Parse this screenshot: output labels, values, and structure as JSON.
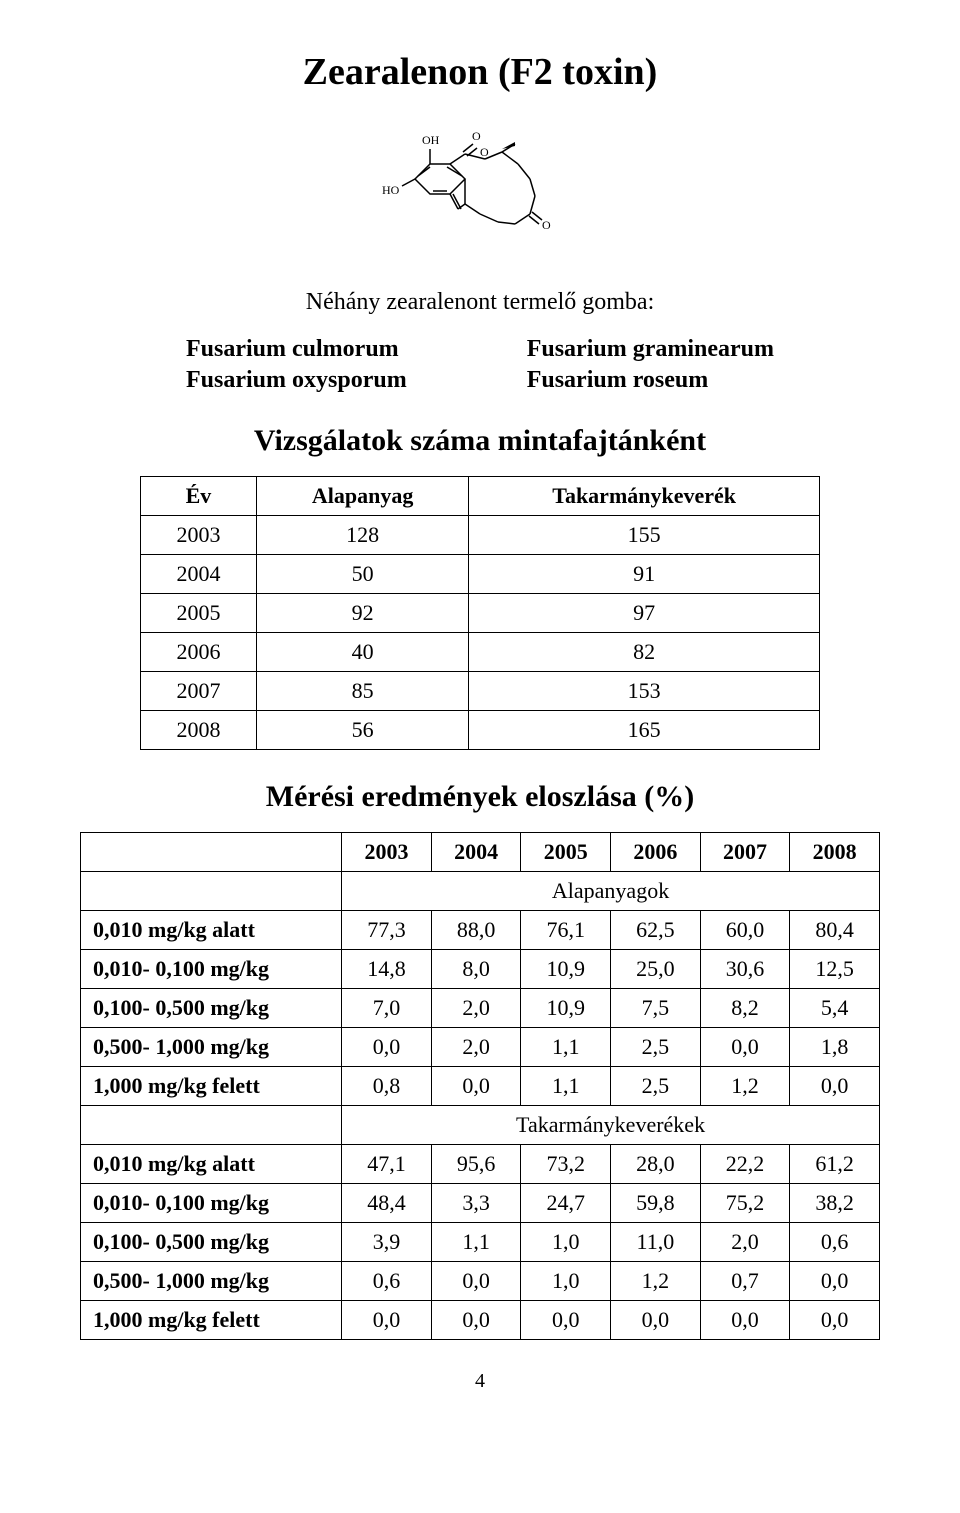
{
  "title": "Zearalenon (F2 toxin)",
  "subtitle": "Néhány zearalenont termelő gomba:",
  "fungi": {
    "left": [
      "Fusarium culmorum",
      "Fusarium oxysporum"
    ],
    "right": [
      "Fusarium graminearum",
      "Fusarium roseum"
    ]
  },
  "section1": {
    "heading": "Vizsgálatok száma mintafajtánként",
    "columns": [
      "Év",
      "Alapanyag",
      "Takarmánykeverék"
    ],
    "rows": [
      [
        "2003",
        "128",
        "155"
      ],
      [
        "2004",
        "50",
        "91"
      ],
      [
        "2005",
        "92",
        "97"
      ],
      [
        "2006",
        "40",
        "82"
      ],
      [
        "2007",
        "85",
        "153"
      ],
      [
        "2008",
        "56",
        "165"
      ]
    ]
  },
  "section2": {
    "heading": "Mérési eredmények eloszlása (%)",
    "year_headers": [
      "2003",
      "2004",
      "2005",
      "2006",
      "2007",
      "2008"
    ],
    "group1_label": "Alapanyagok",
    "group1_rows": [
      [
        "0,010 mg/kg alatt",
        "77,3",
        "88,0",
        "76,1",
        "62,5",
        "60,0",
        "80,4"
      ],
      [
        "0,010- 0,100 mg/kg",
        "14,8",
        "8,0",
        "10,9",
        "25,0",
        "30,6",
        "12,5"
      ],
      [
        "0,100- 0,500 mg/kg",
        "7,0",
        "2,0",
        "10,9",
        "7,5",
        "8,2",
        "5,4"
      ],
      [
        "0,500- 1,000 mg/kg",
        "0,0",
        "2,0",
        "1,1",
        "2,5",
        "0,0",
        "1,8"
      ],
      [
        "1,000 mg/kg felett",
        "0,8",
        "0,0",
        "1,1",
        "2,5",
        "1,2",
        "0,0"
      ]
    ],
    "group2_label": "Takarmánykeverékek",
    "group2_rows": [
      [
        "0,010 mg/kg alatt",
        "47,1",
        "95,6",
        "73,2",
        "28,0",
        "22,2",
        "61,2"
      ],
      [
        "0,010- 0,100 mg/kg",
        "48,4",
        "3,3",
        "24,7",
        "59,8",
        "75,2",
        "38,2"
      ],
      [
        "0,100- 0,500 mg/kg",
        "3,9",
        "1,1",
        "1,0",
        "11,0",
        "2,0",
        "0,6"
      ],
      [
        "0,500- 1,000 mg/kg",
        "0,6",
        "0,0",
        "1,0",
        "1,2",
        "0,7",
        "0,0"
      ],
      [
        "1,000 mg/kg felett",
        "0,0",
        "0,0",
        "0,0",
        "0,0",
        "0,0",
        "0,0"
      ]
    ]
  },
  "page_number": "4",
  "molecule_labels": {
    "oh": "OH",
    "ho": "HO",
    "o1": "O",
    "o2": "O",
    "o3": "O"
  }
}
